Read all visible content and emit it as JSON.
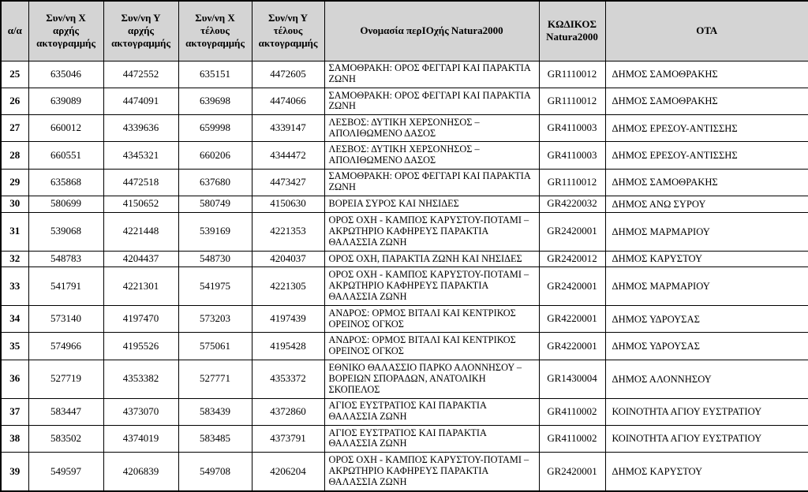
{
  "colors": {
    "page_bg": "#ffffff",
    "header_bg": "#d4d4d4",
    "border": "#000000",
    "text": "#000000"
  },
  "table": {
    "headers": [
      {
        "key": "aa",
        "label": "α/α"
      },
      {
        "key": "x_start",
        "label": "Συν/νη Χ αρχής ακτογραμμής"
      },
      {
        "key": "y_start",
        "label": "Συν/νη Υ αρχής ακτογραμμής"
      },
      {
        "key": "x_end",
        "label": "Συν/νη Χ τέλους ακτογραμμής"
      },
      {
        "key": "y_end",
        "label": "Συν/νη Υ τέλους ακτογραμμής"
      },
      {
        "key": "name",
        "label": "Ονομασία περΙΟχής Natura2000"
      },
      {
        "key": "code",
        "label": "ΚΩΔΙΚΟΣ Natura2000"
      },
      {
        "key": "ota",
        "label": "ΟΤΑ"
      }
    ],
    "rows": [
      {
        "aa": "25",
        "x_start": "635046",
        "y_start": "4472552",
        "x_end": "635151",
        "y_end": "4472605",
        "name": "ΣΑΜΟΘΡΑΚΗ: ΟΡΟΣ ΦΕΓΓΑΡΙ ΚΑΙ ΠΑΡΑΚΤΙΑ ΖΩΝΗ",
        "code": "GR1110012",
        "ota": "ΔΗΜΟΣ ΣΑΜΟΘΡΑΚΗΣ"
      },
      {
        "aa": "26",
        "x_start": "639089",
        "y_start": "4474091",
        "x_end": "639698",
        "y_end": "4474066",
        "name": "ΣΑΜΟΘΡΑΚΗ: ΟΡΟΣ ΦΕΓΓΑΡΙ ΚΑΙ ΠΑΡΑΚΤΙΑ ΖΩΝΗ",
        "code": "GR1110012",
        "ota": "ΔΗΜΟΣ ΣΑΜΟΘΡΑΚΗΣ"
      },
      {
        "aa": "27",
        "x_start": "660012",
        "y_start": "4339636",
        "x_end": "659998",
        "y_end": "4339147",
        "name": "ΛΕΣΒΟΣ: ΔΥΤΙΚΗ ΧΕΡΣΟΝΗΣΟΣ – ΑΠΟΛΙΘΩΜΕΝΟ ΔΑΣΟΣ",
        "code": "GR4110003",
        "ota": "ΔΗΜΟΣ ΕΡΕΣΟΥ-ΑΝΤΙΣΣΗΣ"
      },
      {
        "aa": "28",
        "x_start": "660551",
        "y_start": "4345321",
        "x_end": "660206",
        "y_end": "4344472",
        "name": "ΛΕΣΒΟΣ: ΔΥΤΙΚΗ ΧΕΡΣΟΝΗΣΟΣ – ΑΠΟΛΙΘΩΜΕΝΟ ΔΑΣΟΣ",
        "code": "GR4110003",
        "ota": "ΔΗΜΟΣ ΕΡΕΣΟΥ-ΑΝΤΙΣΣΗΣ"
      },
      {
        "aa": "29",
        "x_start": "635868",
        "y_start": "4472518",
        "x_end": "637680",
        "y_end": "4473427",
        "name": "ΣΑΜΟΘΡΑΚΗ: ΟΡΟΣ ΦΕΓΓΑΡΙ ΚΑΙ ΠΑΡΑΚΤΙΑ ΖΩΝΗ",
        "code": "GR1110012",
        "ota": "ΔΗΜΟΣ ΣΑΜΟΘΡΑΚΗΣ"
      },
      {
        "aa": "30",
        "x_start": "580699",
        "y_start": "4150652",
        "x_end": "580749",
        "y_end": "4150630",
        "name": "ΒΟΡΕΙΑ ΣΥΡΟΣ ΚΑΙ ΝΗΣΙΔΕΣ",
        "code": "GR4220032",
        "ota": "ΔΗΜΟΣ ΑΝΩ ΣΥΡΟΥ"
      },
      {
        "aa": "31",
        "x_start": "539068",
        "y_start": "4221448",
        "x_end": "539169",
        "y_end": "4221353",
        "name": "ΟΡΟΣ ΟΧΗ - ΚΑΜΠΟΣ ΚΑΡΥΣΤΟΥ-ΠΟΤΑΜΙ – ΑΚΡΩΤΗΡΙΟ ΚΑΦΗΡΕΥΣ ΠΑΡΑΚΤΙΑ ΘΑΛΑΣΣΙΑ ΖΩΝΗ",
        "code": "GR2420001",
        "ota": "ΔΗΜΟΣ ΜΑΡΜΑΡΙΟΥ"
      },
      {
        "aa": "32",
        "x_start": "548783",
        "y_start": "4204437",
        "x_end": "548730",
        "y_end": "4204037",
        "name": "ΟΡΟΣ ΟΧΗ, ΠΑΡΑΚΤΙΑ ΖΩΝΗ ΚΑΙ ΝΗΣΙΔΕΣ",
        "code": "GR2420012",
        "ota": "ΔΗΜΟΣ ΚΑΡΥΣΤΟΥ"
      },
      {
        "aa": "33",
        "x_start": "541791",
        "y_start": "4221301",
        "x_end": "541975",
        "y_end": "4221305",
        "name": "ΟΡΟΣ ΟΧΗ - ΚΑΜΠΟΣ ΚΑΡΥΣΤΟΥ-ΠΟΤΑΜΙ – ΑΚΡΩΤΗΡΙΟ ΚΑΦΗΡΕΥΣ ΠΑΡΑΚΤΙΑ ΘΑΛΑΣΣΙΑ ΖΩΝΗ",
        "code": "GR2420001",
        "ota": "ΔΗΜΟΣ ΜΑΡΜΑΡΙΟΥ"
      },
      {
        "aa": "34",
        "x_start": "573140",
        "y_start": "4197470",
        "x_end": "573203",
        "y_end": "4197439",
        "name": "ΑΝΔΡΟΣ: ΟΡΜΟΣ ΒΙΤΑΛΙ ΚΑΙ ΚΕΝΤΡΙΚΟΣ ΟΡΕΙΝΟΣ ΟΓΚΟΣ",
        "code": "GR4220001",
        "ota": "ΔΗΜΟΣ ΥΔΡΟΥΣΑΣ"
      },
      {
        "aa": "35",
        "x_start": "574966",
        "y_start": "4195526",
        "x_end": "575061",
        "y_end": "4195428",
        "name": "ΑΝΔΡΟΣ: ΟΡΜΟΣ ΒΙΤΑΛΙ ΚΑΙ ΚΕΝΤΡΙΚΟΣ ΟΡΕΙΝΟΣ ΟΓΚΟΣ",
        "code": "GR4220001",
        "ota": "ΔΗΜΟΣ ΥΔΡΟΥΣΑΣ"
      },
      {
        "aa": "36",
        "x_start": "527719",
        "y_start": "4353382",
        "x_end": "527771",
        "y_end": "4353372",
        "name": "ΕΘΝΙΚΟ ΘΑΛΑΣΣΙΟ ΠΑΡΚΟ ΑΛΟΝΝΗΣΟΥ – ΒΟΡΕΙΩΝ ΣΠΟΡΑΔΩΝ, ΑΝΑΤΟΛΙΚΗ ΣΚΟΠΕΛΟΣ",
        "code": "GR1430004",
        "ota": "ΔΗΜΟΣ ΑΛΟΝΝΗΣΟΥ"
      },
      {
        "aa": "37",
        "x_start": "583447",
        "y_start": "4373070",
        "x_end": "583439",
        "y_end": "4372860",
        "name": "ΑΓΙΟΣ ΕΥΣΤΡΑΤΙΟΣ ΚΑΙ ΠΑΡΑΚΤΙΑ ΘΑΛΑΣΣΙΑ ΖΩΝΗ",
        "code": "GR4110002",
        "ota": "ΚΟΙΝΟΤΗΤΑ ΑΓΙΟΥ ΕΥΣΤΡΑΤΙΟΥ"
      },
      {
        "aa": "38",
        "x_start": "583502",
        "y_start": "4374019",
        "x_end": "583485",
        "y_end": "4373791",
        "name": "ΑΓΙΟΣ ΕΥΣΤΡΑΤΙΟΣ ΚΑΙ ΠΑΡΑΚΤΙΑ ΘΑΛΑΣΣΙΑ ΖΩΝΗ",
        "code": "GR4110002",
        "ota": "ΚΟΙΝΟΤΗΤΑ ΑΓΙΟΥ ΕΥΣΤΡΑΤΙΟΥ"
      },
      {
        "aa": "39",
        "x_start": "549597",
        "y_start": "4206839",
        "x_end": "549708",
        "y_end": "4206204",
        "name": "ΟΡΟΣ ΟΧΗ - ΚΑΜΠΟΣ ΚΑΡΥΣΤΟΥ-ΠΟΤΑΜΙ – ΑΚΡΩΤΗΡΙΟ ΚΑΦΗΡΕΥΣ ΠΑΡΑΚΤΙΑ ΘΑΛΑΣΣΙΑ ΖΩΝΗ",
        "code": "GR2420001",
        "ota": "ΔΗΜΟΣ ΚΑΡΥΣΤΟΥ"
      }
    ]
  }
}
